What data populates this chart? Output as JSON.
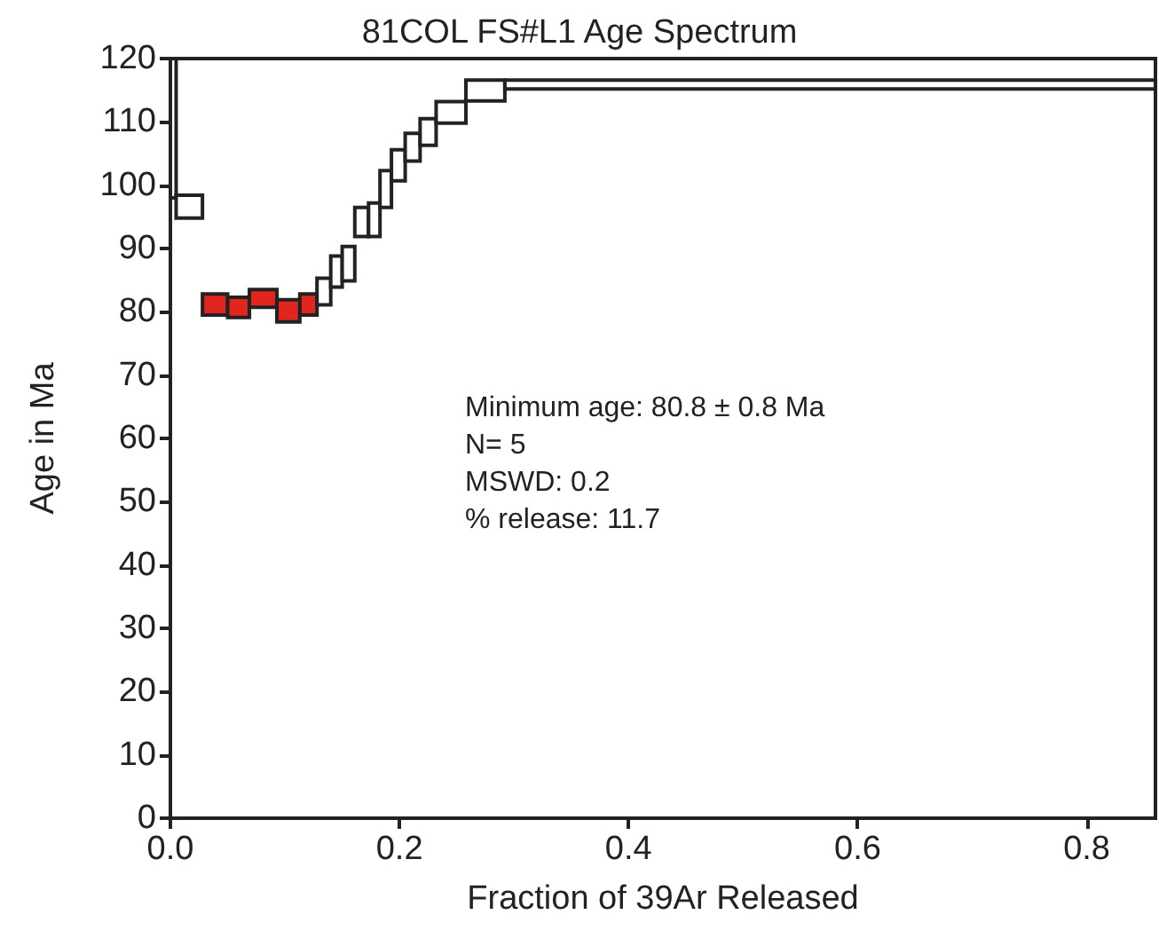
{
  "chart_data": {
    "type": "histogram",
    "title": "81COL FS#L1 Age Spectrum",
    "xlabel": "Fraction of 39Ar Released",
    "ylabel": "Age in Ma",
    "bins": [
      0,
      0.005,
      0.028,
      0.05,
      0.069,
      0.093,
      0.113,
      0.128,
      0.14,
      0.15,
      0.161,
      0.173,
      0.183,
      0.193,
      0.205,
      0.218,
      0.232,
      0.258,
      0.292,
      0.86
    ],
    "base": [
      98,
      94.8,
      79.5,
      79.1,
      80.7,
      78.4,
      79.5,
      81.1,
      83.9,
      84.9,
      91.9,
      91.9,
      96.5,
      100.7,
      103.8,
      106.3,
      109.8,
      113.3,
      115.2
    ],
    "values": [
      22,
      3.6,
      3.3,
      3.2,
      2.8,
      3.5,
      3.3,
      4.2,
      4.9,
      5.4,
      4.6,
      5.3,
      5.8,
      4.9,
      4.4,
      4.2,
      3.4,
      3.3,
      1.4
    ],
    "colors": [
      "#ffffff",
      "#ffffff",
      "#e0261e",
      "#e0261e",
      "#e0261e",
      "#e0261e",
      "#e0261e",
      "#ffffff",
      "#ffffff",
      "#ffffff",
      "#ffffff",
      "#ffffff",
      "#ffffff",
      "#ffffff",
      "#ffffff",
      "#ffffff",
      "#ffffff",
      "#ffffff",
      "#ffffff"
    ],
    "xlim": [
      0,
      0.86
    ],
    "xticks": [
      {
        "value": 0,
        "label": "0.0"
      },
      {
        "value": 0.2,
        "label": "0.2"
      },
      {
        "value": 0.4,
        "label": "0.4"
      },
      {
        "value": 0.6,
        "label": "0.6"
      },
      {
        "value": 0.8,
        "label": "0.8"
      }
    ],
    "ylim": [
      0,
      120
    ],
    "yticks": [
      0,
      10,
      20,
      30,
      40,
      50,
      60,
      70,
      80,
      90,
      100,
      110,
      120
    ],
    "grid": false,
    "annotations": [
      "Minimum age: 80.8 ± 0.8 Ma",
      "N= 5",
      "MSWD: 0.2",
      "% release: 11.7"
    ]
  }
}
